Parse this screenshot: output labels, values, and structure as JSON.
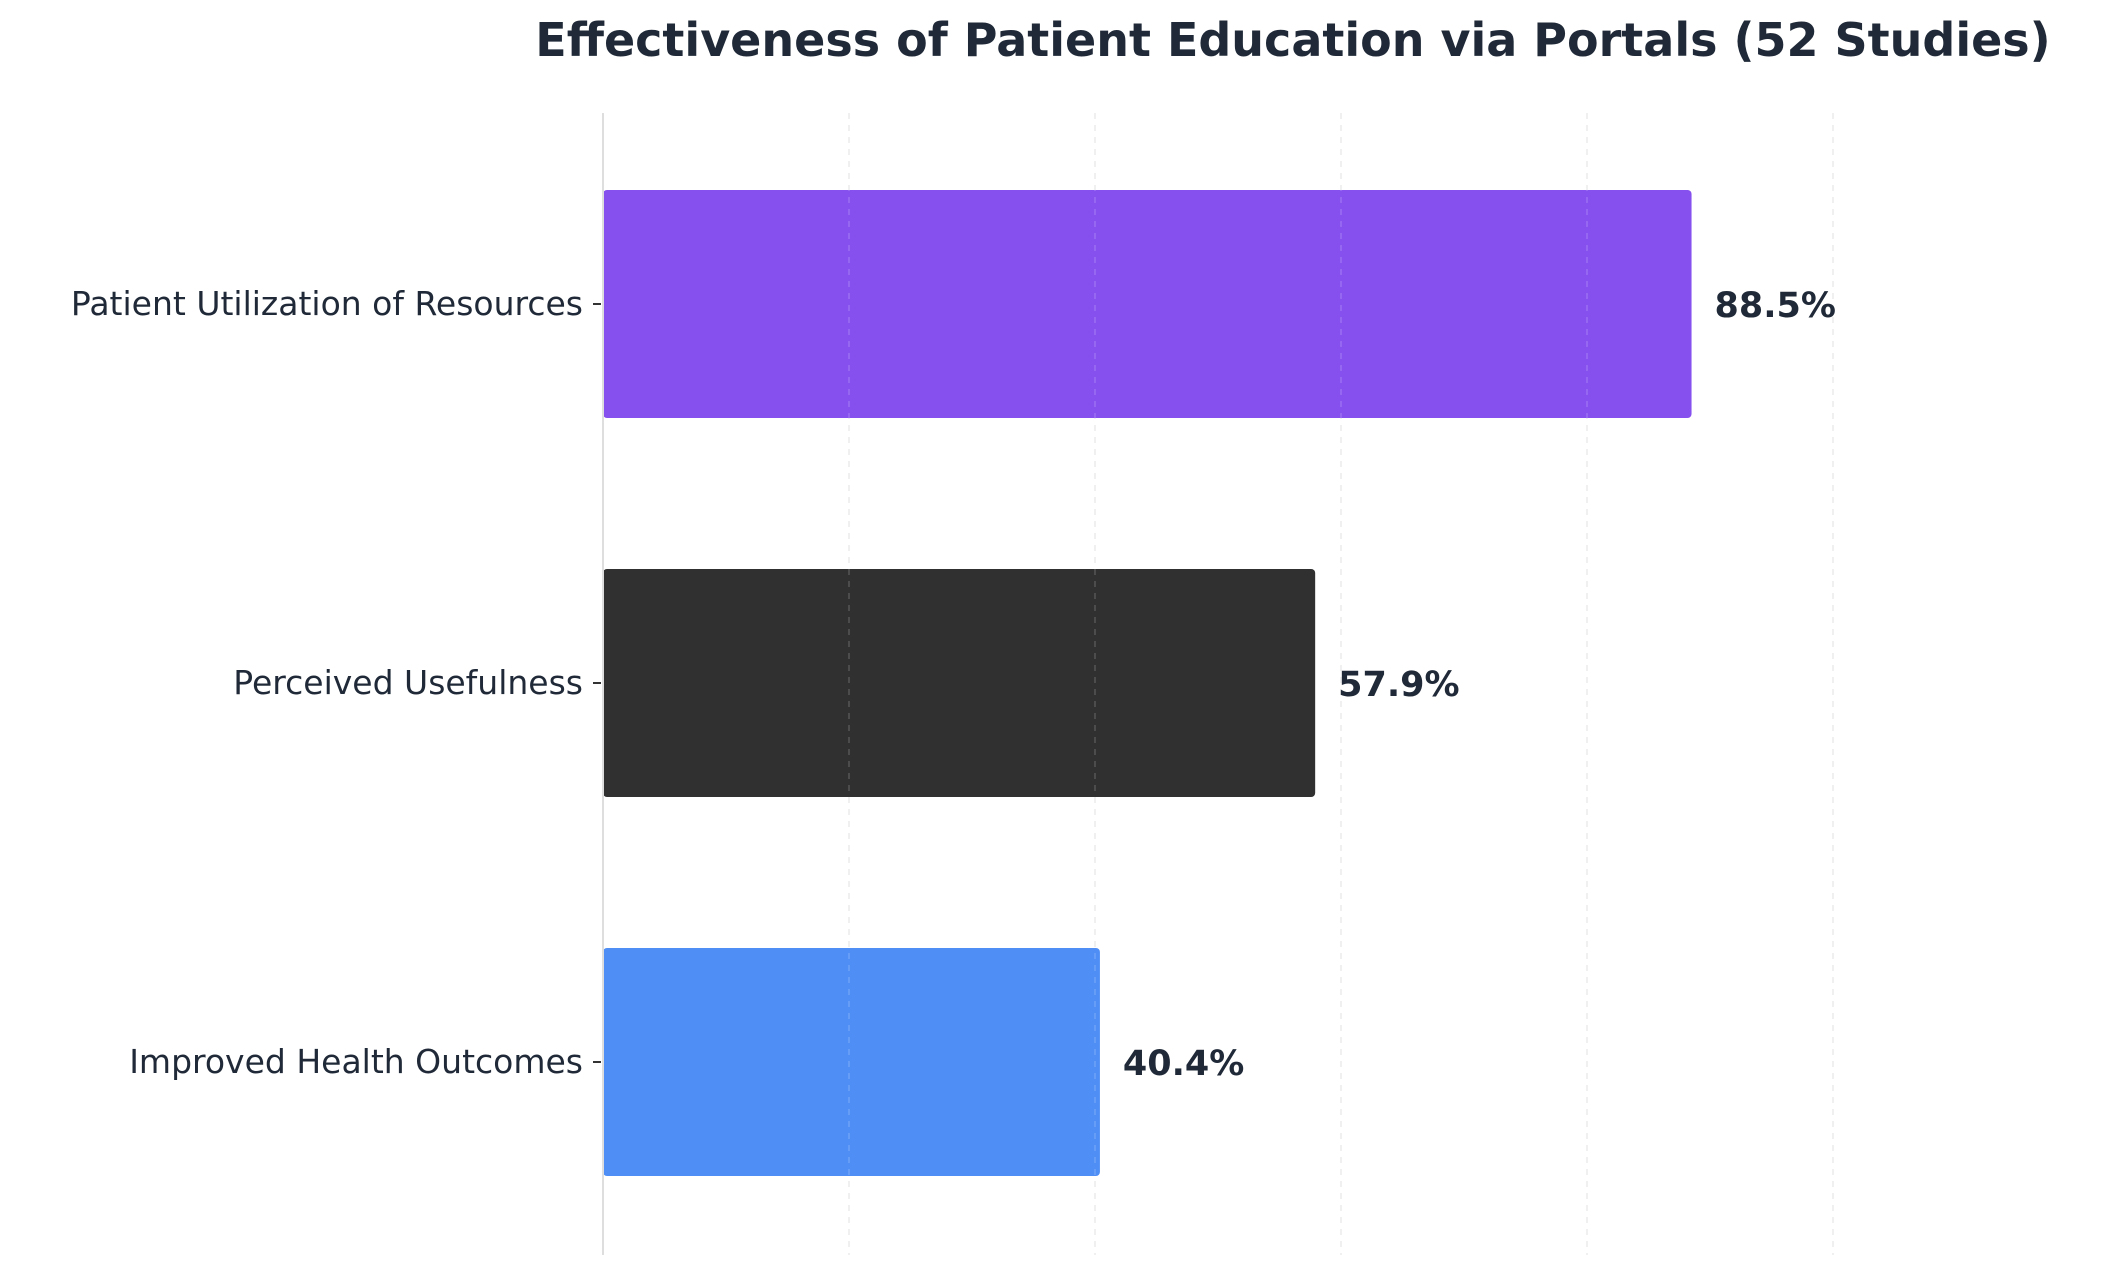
{
  "chart_data": {
    "type": "bar",
    "orientation": "horizontal",
    "title": "Effectiveness of Patient Education via Portals (52 Studies)",
    "xlabel": "",
    "ylabel": "",
    "xlim": [
      0,
      100
    ],
    "grid": "vertical-dashed",
    "categories": [
      "Patient Utilization of Resources",
      "Perceived Usefulness",
      "Improved Health Outcomes"
    ],
    "values": [
      88.5,
      57.9,
      40.4
    ],
    "value_labels": [
      "88.5%",
      "57.9%",
      "40.4%"
    ],
    "colors": [
      "#8650ee",
      "#303030",
      "#4f8ef5"
    ]
  }
}
